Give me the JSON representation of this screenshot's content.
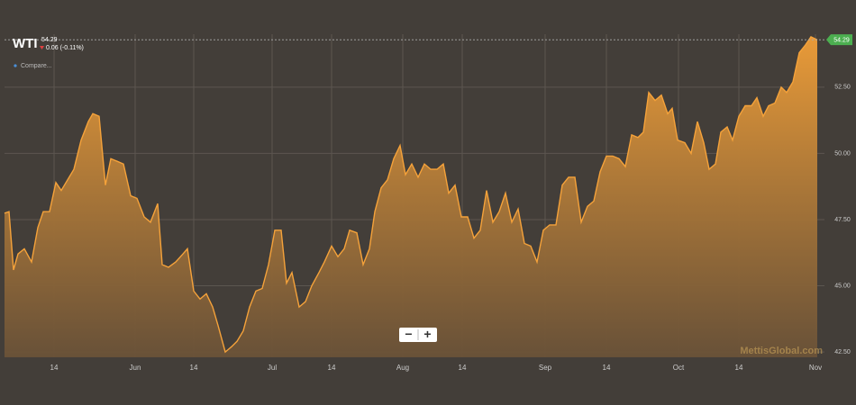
{
  "chart_data": {
    "type": "area",
    "title": "WTI",
    "last_price": 54.29,
    "change_label": "0.06 (-0.11%)",
    "compare_label": "Compare...",
    "zoom_out": "−",
    "zoom_in": "+",
    "watermark": "MettisGlobal.com",
    "color": "#f5a23a",
    "x": [
      0,
      1,
      2,
      3,
      4.4,
      6,
      7.4,
      8.6,
      10,
      11.4,
      12.6,
      14,
      15.4,
      17,
      18.6,
      19.6,
      21,
      22.4,
      23.6,
      25,
      26.4,
      28,
      29.4,
      31,
      32.4,
      34,
      35,
      36.4,
      38,
      39.6,
      40.6,
      42,
      43.4,
      44.8,
      46.2,
      47.4,
      49,
      50.4,
      51.6,
      53,
      54.4,
      55.8,
      57.2,
      58.6,
      60,
      61.4,
      62.6,
      63.8,
      65.4,
      66.8,
      68.2,
      69.8,
      71,
      72.6,
      74,
      75.4,
      76.6,
      78.2,
      79.6,
      81,
      82.2,
      83.6,
      85,
      86.4,
      87.8,
      89,
      90.4,
      91.8,
      93.2,
      94.6,
      96,
      97.4,
      98.6,
      100,
      101.4,
      102.8,
      104.2,
      105.6,
      107,
      108.4,
      109.8,
      111.2,
      112.6,
      114,
      115.4,
      116.8,
      118.2,
      119.6,
      121,
      122.4,
      123.8,
      125.2,
      126.6,
      128,
      129.4,
      130.8,
      132.2,
      133.6,
      135,
      136.4,
      137.8,
      139.2,
      140.6,
      141.8,
      143,
      144.4,
      145.8,
      147.2,
      148.2,
      149.4,
      151,
      152.4,
      153.8,
      155.2,
      156.4,
      157.8,
      159,
      160.4,
      161.6,
      163,
      164.4,
      165.8,
      167,
      168.4,
      169.6,
      171,
      172.4,
      173.6,
      175,
      176.4,
      177.8,
      179,
      180.4
    ],
    "values": [
      47.74,
      47.8,
      45.6,
      46.2,
      46.4,
      45.9,
      47.2,
      47.8,
      47.8,
      48.9,
      48.6,
      49.0,
      49.4,
      50.5,
      51.2,
      51.5,
      51.4,
      48.8,
      49.8,
      49.7,
      49.6,
      48.4,
      48.3,
      47.6,
      47.4,
      48.1,
      45.8,
      45.7,
      45.9,
      46.2,
      46.4,
      44.8,
      44.5,
      44.7,
      44.2,
      43.5,
      42.5,
      42.7,
      42.9,
      43.3,
      44.2,
      44.8,
      44.9,
      45.8,
      47.1,
      47.1,
      45.1,
      45.5,
      44.2,
      44.4,
      45.0,
      45.5,
      45.9,
      46.5,
      46.1,
      46.4,
      47.1,
      47.0,
      45.8,
      46.4,
      47.8,
      48.7,
      49.0,
      49.8,
      50.3,
      49.2,
      49.6,
      49.1,
      49.6,
      49.4,
      49.4,
      49.6,
      48.5,
      48.8,
      47.6,
      47.6,
      46.8,
      47.1,
      48.6,
      47.4,
      47.8,
      48.5,
      47.4,
      47.9,
      46.6,
      46.5,
      45.9,
      47.1,
      47.3,
      47.3,
      48.8,
      49.1,
      49.1,
      47.4,
      48.0,
      48.2,
      49.3,
      49.9,
      49.9,
      49.8,
      49.5,
      50.7,
      50.6,
      50.8,
      52.3,
      52.0,
      52.2,
      51.5,
      51.7,
      50.5,
      50.4,
      50.0,
      51.2,
      50.4,
      49.4,
      49.6,
      50.8,
      51.0,
      50.5,
      51.4,
      51.8,
      51.8,
      52.1,
      51.4,
      51.8,
      51.9,
      52.5,
      52.3,
      52.7,
      53.8,
      54.1,
      54.4,
      54.29
    ],
    "xlim": [
      0,
      182
    ],
    "xticks": [
      {
        "value": 11,
        "label": "14"
      },
      {
        "value": 29,
        "label": "Jun"
      },
      {
        "value": 42,
        "label": "14"
      },
      {
        "value": 59.4,
        "label": "Jul"
      },
      {
        "value": 72.6,
        "label": "14"
      },
      {
        "value": 88.4,
        "label": "Aug"
      },
      {
        "value": 101.6,
        "label": "14"
      },
      {
        "value": 120,
        "label": "Sep"
      },
      {
        "value": 133.6,
        "label": "14"
      },
      {
        "value": 149.6,
        "label": "Oct"
      },
      {
        "value": 163,
        "label": "14"
      },
      {
        "value": 180,
        "label": "Nov"
      }
    ],
    "ylim": [
      42.3,
      54.5
    ],
    "yticks": [
      {
        "value": 42.5,
        "label": "42.50"
      },
      {
        "value": 45,
        "label": "45.00"
      },
      {
        "value": 47.5,
        "label": "47.50"
      },
      {
        "value": 50,
        "label": "50.00"
      },
      {
        "value": 52.5,
        "label": "52.50"
      }
    ],
    "grid": true
  }
}
